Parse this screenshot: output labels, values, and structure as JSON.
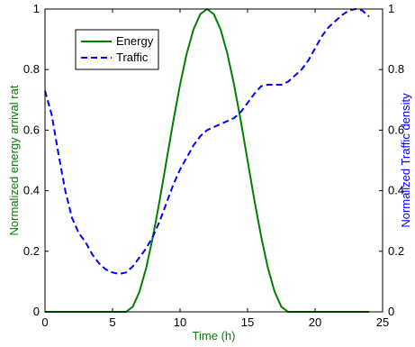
{
  "chart_data": {
    "type": "line",
    "xlabel": "Time (h)",
    "ylabel_left": "Normalized energy arrival rat",
    "ylabel_right": "Normalized Traffic density",
    "xlim": [
      0,
      25
    ],
    "ylim_left": [
      0,
      1
    ],
    "ylim_right": [
      0,
      1
    ],
    "x_ticks": [
      "0",
      "5",
      "10",
      "15",
      "20",
      "25"
    ],
    "y_ticks_left": [
      "0",
      "0.2",
      "0.4",
      "0.6",
      "0.8",
      "1"
    ],
    "y_ticks_right": [
      "0",
      "0.2",
      "0.4",
      "0.6",
      "0.8",
      "1"
    ],
    "grid": false,
    "legend_position": "top-left",
    "series": [
      {
        "name": "Energy",
        "axis": "left",
        "color": "#007f00",
        "style": "solid",
        "x": [
          0,
          6,
          6.5,
          7,
          7.5,
          8,
          8.5,
          9,
          9.5,
          10,
          10.5,
          11,
          11.5,
          12,
          12.5,
          13,
          13.5,
          14,
          14.5,
          15,
          15.5,
          16,
          16.5,
          17,
          17.5,
          18,
          24
        ],
        "y": [
          0,
          0,
          0.017,
          0.067,
          0.146,
          0.25,
          0.37,
          0.5,
          0.63,
          0.75,
          0.854,
          0.933,
          0.983,
          1.0,
          0.983,
          0.933,
          0.854,
          0.75,
          0.63,
          0.5,
          0.37,
          0.25,
          0.146,
          0.067,
          0.017,
          0,
          0
        ]
      },
      {
        "name": "Traffic",
        "axis": "right",
        "color": "#0000ff",
        "style": "dashed",
        "x": [
          0,
          0.5,
          1,
          1.5,
          2,
          2.5,
          3,
          3.5,
          4,
          4.5,
          5,
          5.5,
          6,
          6.5,
          7,
          7.5,
          8,
          8.5,
          9,
          9.5,
          10,
          10.5,
          11,
          11.5,
          12,
          12.5,
          13,
          13.5,
          14,
          14.5,
          15,
          15.5,
          16,
          16.5,
          17,
          17.5,
          18,
          18.5,
          19,
          19.5,
          20,
          20.5,
          21,
          21.5,
          22,
          22.5,
          23,
          23.5,
          24
        ],
        "y": [
          0.73,
          0.65,
          0.52,
          0.4,
          0.31,
          0.26,
          0.23,
          0.19,
          0.16,
          0.14,
          0.13,
          0.125,
          0.13,
          0.15,
          0.18,
          0.21,
          0.25,
          0.3,
          0.36,
          0.42,
          0.47,
          0.51,
          0.55,
          0.58,
          0.6,
          0.61,
          0.62,
          0.63,
          0.64,
          0.66,
          0.69,
          0.72,
          0.745,
          0.75,
          0.75,
          0.75,
          0.76,
          0.78,
          0.8,
          0.83,
          0.87,
          0.91,
          0.94,
          0.96,
          0.98,
          0.995,
          1.0,
          0.995,
          0.975
        ]
      }
    ]
  }
}
